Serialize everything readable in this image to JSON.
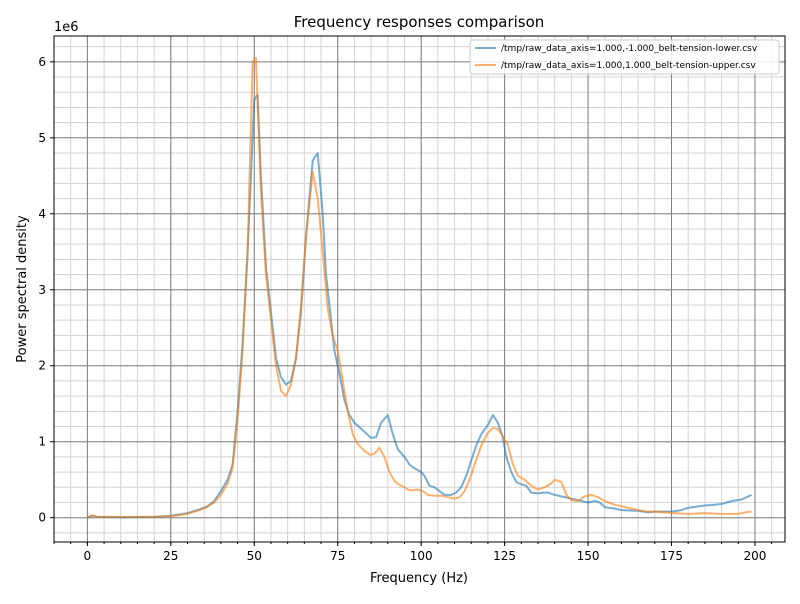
{
  "chart_data": {
    "type": "line",
    "title": "Frequency responses comparison",
    "xlabel": "Frequency (Hz)",
    "ylabel": "Power spectral density",
    "y_offset_label": "1e6",
    "xlim": [
      -10,
      209
    ],
    "ylim": [
      -0.32,
      6.34
    ],
    "y_scale": 1000000,
    "xticks": [
      0,
      25,
      50,
      75,
      100,
      125,
      150,
      175,
      200
    ],
    "xtick_labels": [
      "0",
      "25",
      "50",
      "75",
      "100",
      "125",
      "150",
      "175",
      "200"
    ],
    "yticks": [
      0,
      1,
      2,
      3,
      4,
      5,
      6
    ],
    "ytick_labels": [
      "0",
      "1",
      "2",
      "3",
      "4",
      "5",
      "6"
    ],
    "grid": {
      "major": true,
      "minor": true,
      "x_minor_step": 5,
      "y_minor_step": 0.2
    },
    "legend_position": "top-right",
    "series": [
      {
        "name": "/tmp/raw_data_axis=1.000,-1.000_belt-tension-lower.csv",
        "color": "#1f77b4",
        "x": [
          0,
          1.5,
          3,
          10,
          20,
          25,
          30,
          33,
          36,
          38,
          40,
          42,
          43.5,
          45,
          46.5,
          48,
          49.5,
          50,
          51,
          52,
          53.5,
          55,
          56.5,
          58,
          59.5,
          61,
          62.5,
          64,
          65.5,
          67.5,
          69,
          70.5,
          71.5,
          72.5,
          74,
          75.5,
          77,
          78.5,
          80,
          82.5,
          85,
          86.5,
          88,
          90,
          91.5,
          93,
          95,
          96.5,
          98,
          100,
          101,
          102.5,
          104,
          105.5,
          107,
          109,
          110.5,
          112,
          113.5,
          115,
          116.5,
          118,
          120,
          121.5,
          123,
          124.5,
          125.5,
          127,
          128.5,
          130,
          131.5,
          133,
          135,
          136.5,
          138,
          140,
          142,
          145,
          148,
          150,
          152,
          153.5,
          155,
          158,
          160,
          165,
          168,
          170,
          175,
          178,
          180,
          185,
          188,
          190,
          193,
          196,
          199
        ],
        "y": [
          0,
          0.03,
          0.01,
          0.005,
          0.01,
          0.025,
          0.06,
          0.1,
          0.15,
          0.22,
          0.35,
          0.5,
          0.7,
          1.4,
          2.3,
          3.5,
          5.0,
          5.5,
          5.57,
          4.5,
          3.3,
          2.7,
          2.1,
          1.85,
          1.75,
          1.8,
          2.1,
          2.7,
          3.7,
          4.7,
          4.8,
          4.0,
          3.2,
          2.8,
          2.2,
          1.9,
          1.55,
          1.35,
          1.25,
          1.15,
          1.05,
          1.06,
          1.25,
          1.35,
          1.1,
          0.9,
          0.8,
          0.7,
          0.65,
          0.6,
          0.55,
          0.42,
          0.4,
          0.35,
          0.3,
          0.3,
          0.33,
          0.4,
          0.55,
          0.75,
          0.95,
          1.1,
          1.22,
          1.35,
          1.25,
          1.05,
          0.8,
          0.6,
          0.47,
          0.44,
          0.42,
          0.33,
          0.32,
          0.33,
          0.33,
          0.3,
          0.28,
          0.25,
          0.22,
          0.2,
          0.22,
          0.2,
          0.14,
          0.12,
          0.1,
          0.09,
          0.07,
          0.08,
          0.08,
          0.1,
          0.13,
          0.16,
          0.17,
          0.18,
          0.22,
          0.24,
          0.3
        ]
      },
      {
        "name": "/tmp/raw_data_axis=1.000,1.000_belt-tension-upper.csv",
        "color": "#ff7f0e",
        "x": [
          0,
          1.5,
          3,
          20,
          25,
          30,
          35,
          38,
          40,
          42,
          43.5,
          45,
          46.5,
          48,
          49.5,
          50.5,
          52,
          53.5,
          55,
          56.5,
          58,
          59.5,
          61,
          62.5,
          64,
          65.5,
          67.5,
          69,
          70.5,
          72,
          73.5,
          75,
          76.5,
          78,
          79.5,
          81,
          83,
          84.5,
          86,
          87.5,
          89,
          90.5,
          92,
          93.5,
          95,
          96.5,
          99,
          100.5,
          102,
          104,
          106,
          108,
          110,
          111.5,
          113,
          114.5,
          116,
          118,
          120,
          121.5,
          123,
          124.5,
          126,
          127.5,
          129,
          131,
          133,
          135,
          137,
          139,
          140,
          142,
          143.5,
          145,
          147,
          149,
          151,
          153,
          155,
          158,
          160,
          163,
          165,
          168,
          170,
          173,
          176,
          180,
          185,
          190,
          195,
          197,
          199
        ],
        "y": [
          0,
          0.03,
          0.01,
          0.01,
          0.02,
          0.05,
          0.12,
          0.2,
          0.3,
          0.45,
          0.65,
          1.3,
          2.2,
          3.5,
          6.0,
          6.05,
          4.3,
          3.2,
          2.6,
          2.0,
          1.67,
          1.6,
          1.75,
          2.1,
          2.8,
          3.7,
          4.55,
          4.2,
          3.5,
          2.75,
          2.4,
          2.2,
          1.8,
          1.4,
          1.1,
          0.97,
          0.88,
          0.83,
          0.84,
          0.92,
          0.8,
          0.6,
          0.48,
          0.43,
          0.4,
          0.36,
          0.37,
          0.35,
          0.3,
          0.29,
          0.29,
          0.27,
          0.25,
          0.27,
          0.35,
          0.5,
          0.7,
          0.95,
          1.12,
          1.18,
          1.17,
          1.07,
          0.95,
          0.7,
          0.55,
          0.5,
          0.42,
          0.37,
          0.4,
          0.45,
          0.5,
          0.47,
          0.3,
          0.23,
          0.22,
          0.28,
          0.3,
          0.27,
          0.22,
          0.17,
          0.15,
          0.12,
          0.1,
          0.08,
          0.08,
          0.07,
          0.06,
          0.05,
          0.06,
          0.05,
          0.05,
          0.07,
          0.08
        ]
      }
    ]
  }
}
